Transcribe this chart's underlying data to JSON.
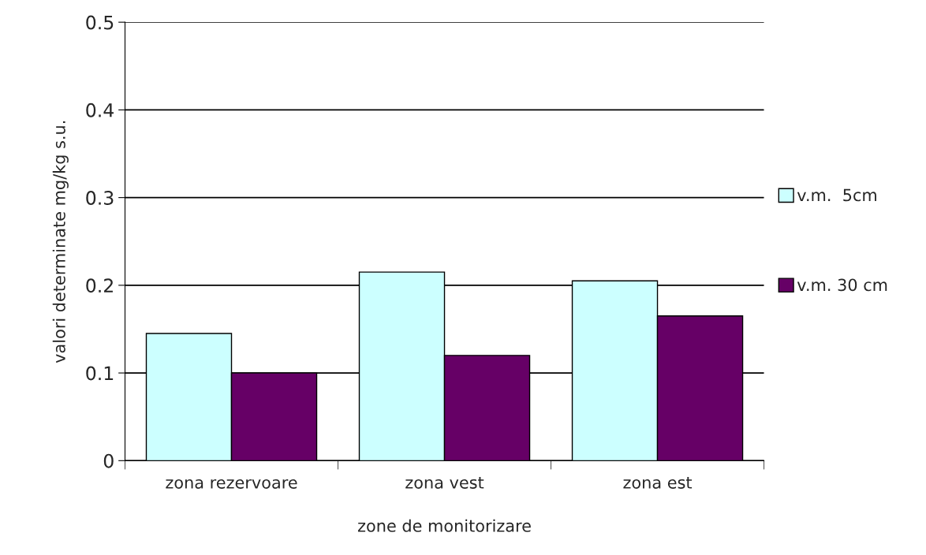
{
  "chart_data": {
    "type": "bar",
    "xlabel": "zone de monitorizare",
    "ylabel": "valori determinate mg/kg s.u.",
    "categories": [
      "zona rezervoare",
      "zona vest",
      "zona est"
    ],
    "series": [
      {
        "name": "v.m.  5cm",
        "color": "#ccffff",
        "values": [
          0.145,
          0.215,
          0.205
        ]
      },
      {
        "name": "v.m. 30 cm",
        "color": "#660066",
        "values": [
          0.1,
          0.12,
          0.165
        ]
      }
    ],
    "ylim": [
      0,
      0.5
    ],
    "yticks": [
      0,
      0.1,
      0.2,
      0.3,
      0.4,
      0.5
    ],
    "grid": "y",
    "legend": "right"
  }
}
